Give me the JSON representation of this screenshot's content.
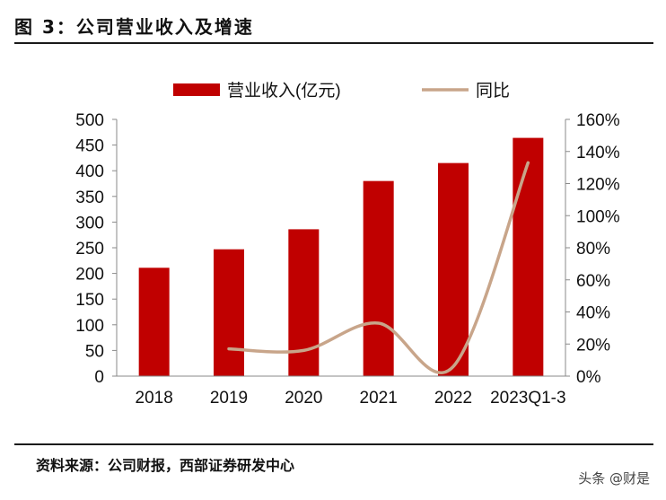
{
  "figure_title": "图 3：公司营业收入及增速",
  "source": "资料来源：公司财报，西部证券研发中心",
  "watermark": "头条 @财是",
  "chart_data": {
    "type": "bar",
    "categories": [
      "2018",
      "2019",
      "2020",
      "2021",
      "2022",
      "2023Q1-3"
    ],
    "series": [
      {
        "name": "营业收入(亿元)",
        "kind": "bar",
        "axis": "left",
        "color": "#c00000",
        "values": [
          211,
          247,
          286,
          380,
          415,
          464
        ]
      },
      {
        "name": "同比",
        "kind": "line",
        "axis": "right",
        "color": "#c8a58a",
        "values": [
          null,
          17,
          16,
          33,
          6,
          133
        ]
      }
    ],
    "y_left": {
      "min": 0,
      "max": 500,
      "step": 50,
      "ticks": [
        "0",
        "50",
        "100",
        "150",
        "200",
        "250",
        "300",
        "350",
        "400",
        "450",
        "500"
      ]
    },
    "y_right": {
      "min": 0,
      "max": 160,
      "step": 20,
      "ticks": [
        "0%",
        "20%",
        "40%",
        "60%",
        "80%",
        "100%",
        "120%",
        "140%",
        "160%"
      ]
    },
    "legend": {
      "position": "top"
    },
    "grid": false
  }
}
